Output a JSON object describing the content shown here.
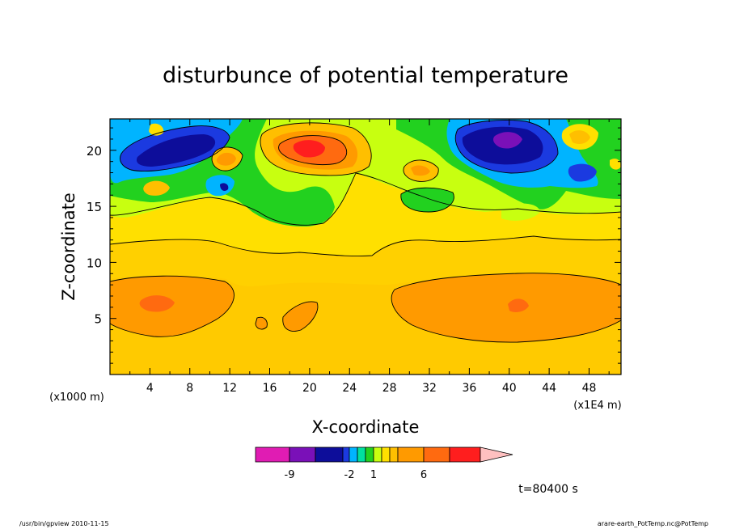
{
  "chart_data": {
    "type": "heatmap",
    "title": "disturbunce of potential temperature",
    "xlabel": "X-coordinate",
    "ylabel": "Z-coordinate",
    "x_unit_label": "(x1E4 m)",
    "y_unit_label": "(x1000 m)",
    "xlim": [
      0,
      51.2
    ],
    "ylim": [
      0,
      22.8
    ],
    "x_ticks": [
      "4",
      "8",
      "12",
      "16",
      "20",
      "24",
      "28",
      "32",
      "36",
      "40",
      "44",
      "48"
    ],
    "y_ticks": [
      "5",
      "10",
      "15",
      "20"
    ],
    "colorbar": {
      "levels": [
        -11,
        -9,
        -7,
        -5,
        -2,
        -1,
        0,
        1,
        2,
        3,
        4,
        6,
        8,
        10
      ],
      "labels": [
        "-9",
        "-2",
        "1",
        "6"
      ],
      "colors": [
        "#e01cb3",
        "#7a10b8",
        "#0d0d9a",
        "#1b3ae0",
        "#00b4ff",
        "#00e0a0",
        "#22d11f",
        "#c8ff10",
        "#ffe000",
        "#ffbf00",
        "#ff9a00",
        "#ff6a10",
        "#ff1e1e",
        "#ff7070",
        "#ffc0c0"
      ]
    },
    "background_level_color": "#ffd000",
    "features": [
      {
        "kind": "positive_max",
        "x": 20.5,
        "z": 20.3,
        "level": 8
      },
      {
        "kind": "negative_min",
        "x": 39.8,
        "z": 20.8,
        "level": -9
      },
      {
        "kind": "negative_region",
        "x": 7,
        "z": 19.5,
        "level": -5
      },
      {
        "kind": "positive_region",
        "x": 5,
        "z": 6.3,
        "level": 6
      },
      {
        "kind": "positive_region",
        "x": 41,
        "z": 6.3,
        "level": 6
      }
    ],
    "annotation_time": "t=80400 s",
    "grid": false
  },
  "footer": {
    "left": "/usr/bin/gpview   2010-11-15",
    "right": "arare-earth_PotTemp.nc@PotTemp"
  }
}
